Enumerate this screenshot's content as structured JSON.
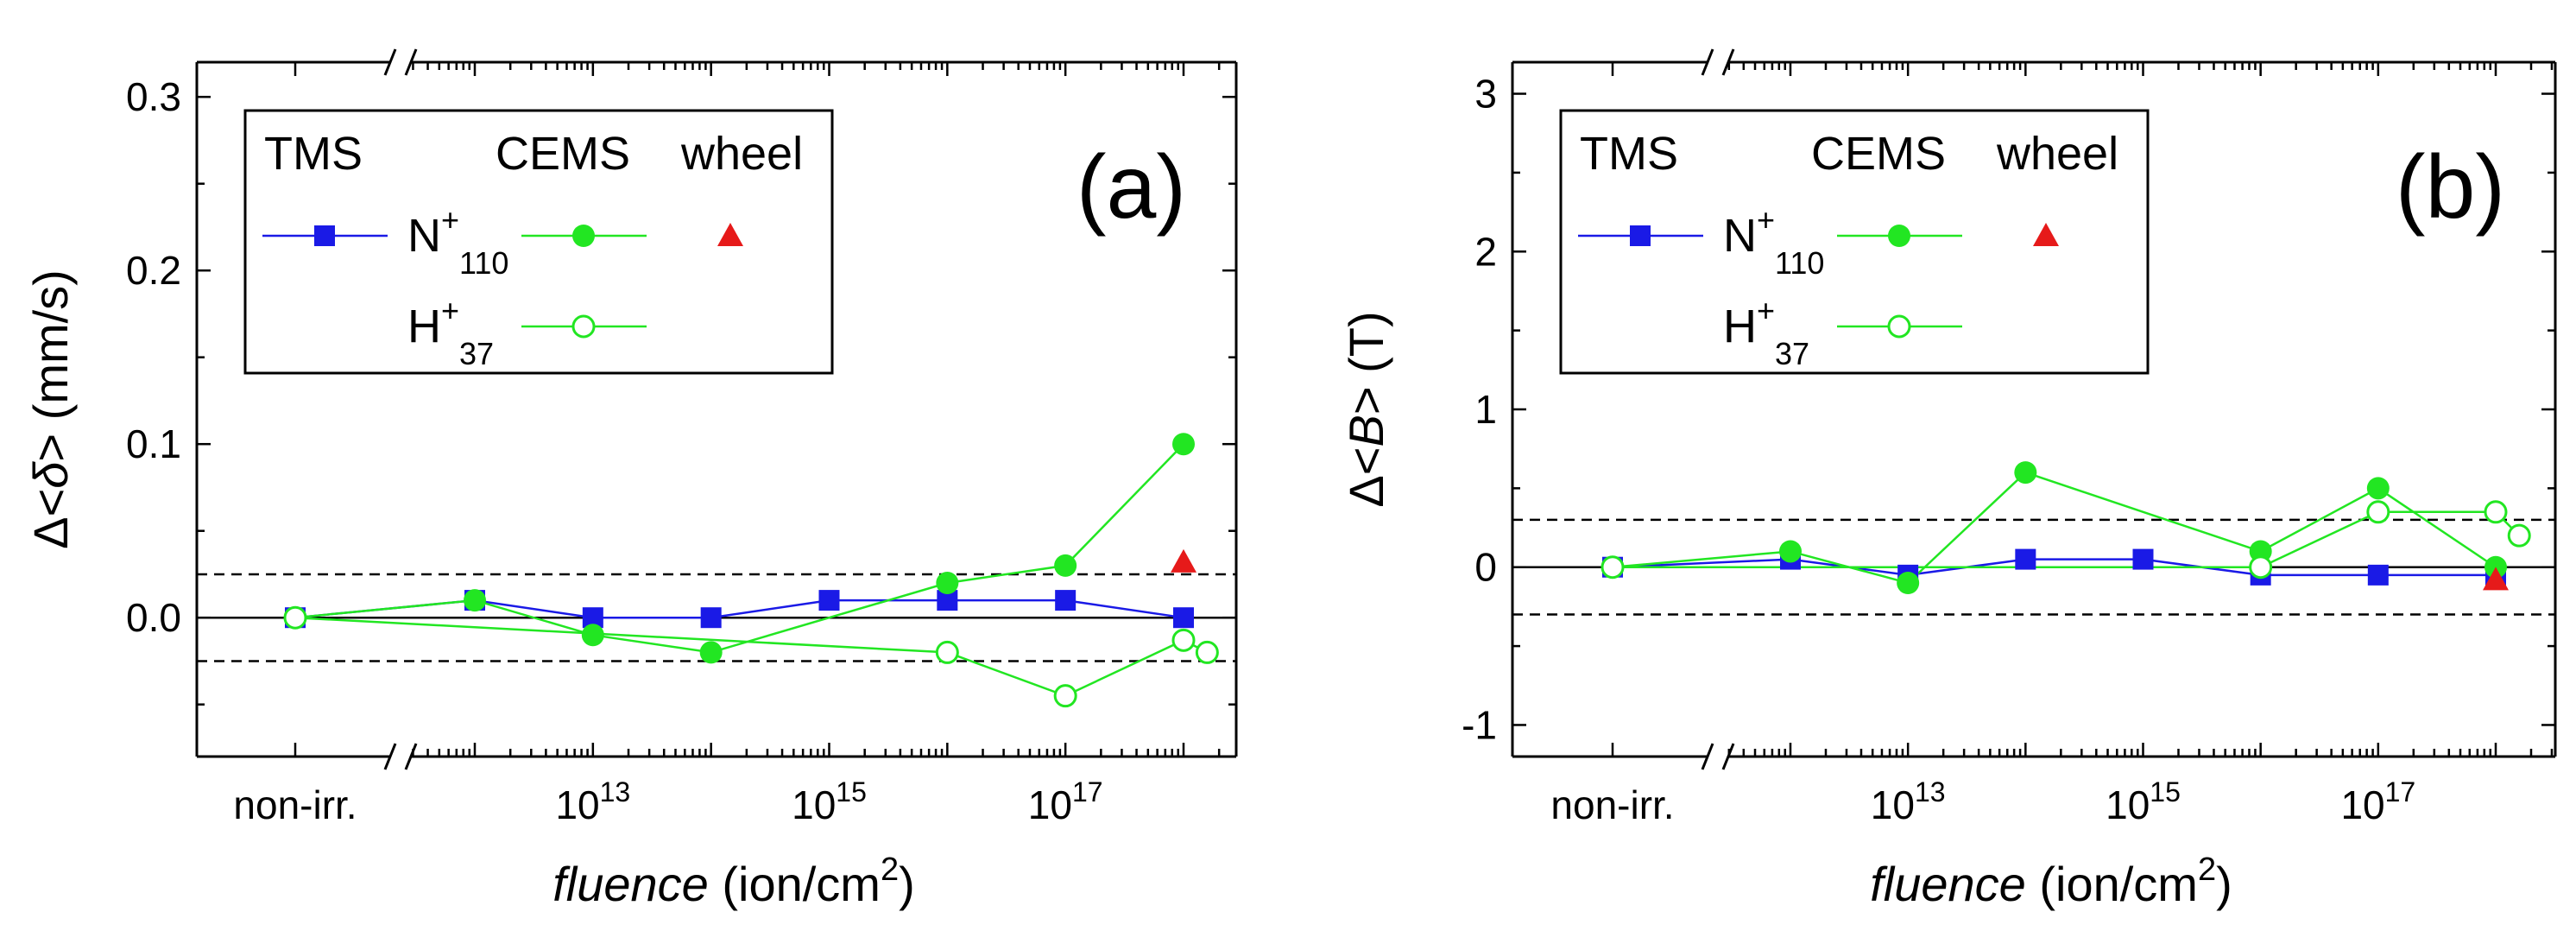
{
  "chart_data": [
    {
      "type": "line",
      "panel_label": "(a)",
      "x_label": "fluence",
      "x_unit": "(ion/cm",
      "x_unit_sup": "2",
      "x_unit_close": ")",
      "y_label_prefix": "Δ<",
      "y_label_symbol": "δ",
      "y_label_suffix": ">",
      "y_unit": "(mm/s)",
      "x_scale": "log10 with axis break; first point is non-irradiated reference",
      "x_category_label": "non-irr.",
      "x_tick_labels": [
        {
          "base": "10",
          "exp": "13",
          "value": 13
        },
        {
          "base": "10",
          "exp": "15",
          "value": 15
        },
        {
          "base": "10",
          "exp": "17",
          "value": 17
        }
      ],
      "ylim": [
        -0.08,
        0.32
      ],
      "y_ticks": [
        "0.0",
        "0.1",
        "0.2",
        "0.3"
      ],
      "y_tick_values": [
        0.0,
        0.1,
        0.2,
        0.3
      ],
      "reference_lines": [
        0.025,
        -0.025
      ],
      "zero_line": 0,
      "legend": {
        "col_tms": "TMS",
        "col_cems": "CEMS",
        "col_wheel": "wheel",
        "row_n_base": "N",
        "row_n_sup": "+",
        "row_n_sub": "110",
        "row_h_base": "H",
        "row_h_sup": "+",
        "row_h_sub": "37",
        "position": "top-left"
      },
      "series": [
        {
          "name": "TMS N+110",
          "color": "#1a1ae6",
          "marker": "square-filled",
          "points": [
            [
              "non-irr.",
              0.0
            ],
            [
              12,
              0.01
            ],
            [
              13,
              0.0
            ],
            [
              14,
              0.0
            ],
            [
              15,
              0.01
            ],
            [
              16,
              0.01
            ],
            [
              17,
              0.01
            ],
            [
              18,
              0.0
            ]
          ]
        },
        {
          "name": "CEMS N+110",
          "color": "#22e622",
          "marker": "circle-filled",
          "points": [
            [
              "non-irr.",
              0.0
            ],
            [
              12,
              0.01
            ],
            [
              13,
              -0.01
            ],
            [
              14,
              -0.02
            ],
            [
              16,
              0.02
            ],
            [
              17,
              0.03
            ],
            [
              18,
              0.1
            ]
          ]
        },
        {
          "name": "CEMS H+37",
          "color": "#22e622",
          "marker": "circle-open",
          "points": [
            [
              "non-irr.",
              0.0
            ],
            [
              16,
              -0.02
            ],
            [
              17,
              -0.045
            ],
            [
              18,
              -0.013
            ],
            [
              18.2,
              -0.02
            ]
          ]
        },
        {
          "name": "wheel N+110",
          "color": "#e61a1a",
          "marker": "triangle-filled",
          "points": [
            [
              18,
              0.032
            ]
          ]
        }
      ]
    },
    {
      "type": "line",
      "panel_label": "(b)",
      "x_label": "fluence",
      "x_unit": "(ion/cm",
      "x_unit_sup": "2",
      "x_unit_close": ")",
      "y_label_prefix": "Δ<",
      "y_label_symbol": "B",
      "y_label_suffix": ">",
      "y_unit": "(T)",
      "x_scale": "log10 with axis break; first point is non-irradiated reference",
      "x_category_label": "non-irr.",
      "x_tick_labels": [
        {
          "base": "10",
          "exp": "13",
          "value": 13
        },
        {
          "base": "10",
          "exp": "15",
          "value": 15
        },
        {
          "base": "10",
          "exp": "17",
          "value": 17
        }
      ],
      "ylim": [
        -1.2,
        3.2
      ],
      "y_ticks": [
        "-1",
        "0",
        "1",
        "2",
        "3"
      ],
      "y_tick_values": [
        -1,
        0,
        1,
        2,
        3
      ],
      "reference_lines": [
        0.3,
        -0.3
      ],
      "zero_line": 0,
      "legend": {
        "col_tms": "TMS",
        "col_cems": "CEMS",
        "col_wheel": "wheel",
        "row_n_base": "N",
        "row_n_sup": "+",
        "row_n_sub": "110",
        "row_h_base": "H",
        "row_h_sup": "+",
        "row_h_sub": "37",
        "position": "top-left"
      },
      "series": [
        {
          "name": "TMS N+110",
          "color": "#1a1ae6",
          "marker": "square-filled",
          "points": [
            [
              "non-irr.",
              0.0
            ],
            [
              12,
              0.05
            ],
            [
              13,
              -0.05
            ],
            [
              14,
              0.05
            ],
            [
              15,
              0.05
            ],
            [
              16,
              -0.05
            ],
            [
              17,
              -0.05
            ],
            [
              18,
              -0.05
            ]
          ]
        },
        {
          "name": "CEMS N+110",
          "color": "#22e622",
          "marker": "circle-filled",
          "points": [
            [
              "non-irr.",
              0.0
            ],
            [
              12,
              0.1
            ],
            [
              13,
              -0.1
            ],
            [
              14,
              0.6
            ],
            [
              16,
              0.1
            ],
            [
              17,
              0.5
            ],
            [
              18,
              0.0
            ]
          ]
        },
        {
          "name": "CEMS H+37",
          "color": "#22e622",
          "marker": "circle-open",
          "points": [
            [
              "non-irr.",
              0.0
            ],
            [
              16,
              0.0
            ],
            [
              17,
              0.35
            ],
            [
              18,
              0.35
            ],
            [
              18.2,
              0.2
            ]
          ]
        },
        {
          "name": "wheel N+110",
          "color": "#e61a1a",
          "marker": "triangle-filled",
          "points": [
            [
              18,
              -0.08
            ]
          ]
        }
      ]
    }
  ]
}
